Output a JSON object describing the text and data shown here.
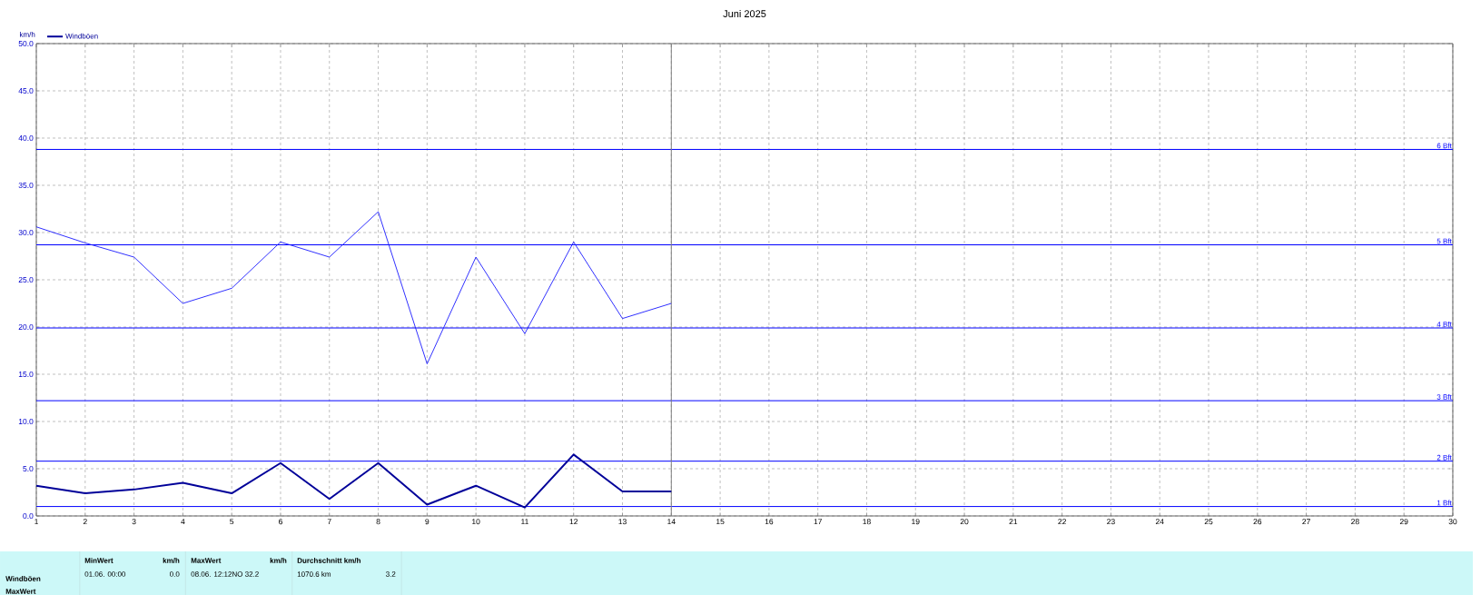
{
  "chart_data": {
    "type": "line",
    "title": "Juni 2025",
    "ylabel": "km/h",
    "x": [
      1,
      2,
      3,
      4,
      5,
      6,
      7,
      8,
      9,
      10,
      11,
      12,
      13,
      14
    ],
    "series": [
      {
        "color": "#1a1aff",
        "values": [
          30.6,
          28.9,
          27.4,
          22.5,
          24.1,
          29.0,
          27.4,
          32.2,
          16.1,
          27.4,
          19.3,
          29.0,
          20.9,
          22.5
        ]
      },
      {
        "name": "Windböen",
        "color": "#000099",
        "values": [
          3.2,
          2.4,
          2.8,
          3.5,
          2.4,
          5.6,
          1.8,
          5.6,
          1.2,
          3.2,
          0.9,
          6.5,
          2.6,
          2.6
        ]
      }
    ],
    "xlim": [
      1,
      30
    ],
    "xticks": [
      1,
      2,
      3,
      4,
      5,
      6,
      7,
      8,
      9,
      10,
      11,
      12,
      13,
      14,
      15,
      16,
      17,
      18,
      19,
      20,
      21,
      22,
      23,
      24,
      25,
      26,
      27,
      28,
      29,
      30
    ],
    "ylim": [
      0,
      50
    ],
    "yticks": [
      {
        "value": 0,
        "label": "0.0"
      },
      {
        "value": 5,
        "label": "5.0"
      },
      {
        "value": 10,
        "label": "10.0"
      },
      {
        "value": 15,
        "label": "15.0"
      },
      {
        "value": 20,
        "label": "20.0"
      },
      {
        "value": 25,
        "label": "25.0"
      },
      {
        "value": 30,
        "label": "30.0"
      },
      {
        "value": 35,
        "label": "35.0"
      },
      {
        "value": 40,
        "label": "40.0"
      },
      {
        "value": 45,
        "label": "45.0"
      },
      {
        "value": 50,
        "label": "50.0"
      }
    ],
    "ref_lines": [
      {
        "axis": "y",
        "value": 1.0,
        "label": "1 Bft",
        "color": "#0000ff"
      },
      {
        "axis": "y",
        "value": 5.8,
        "label": "2 Bft",
        "color": "#0000ff"
      },
      {
        "axis": "y",
        "value": 12.2,
        "label": "3 Bft",
        "color": "#0000ff"
      },
      {
        "axis": "y",
        "value": 19.9,
        "label": "4 Bft",
        "color": "#0000ff"
      },
      {
        "axis": "y",
        "value": 28.7,
        "label": "5 Bft",
        "color": "#0000ff"
      },
      {
        "axis": "y",
        "value": 38.8,
        "label": "6 Bft",
        "color": "#0000ff"
      },
      {
        "axis": "x",
        "value": 14,
        "color": "#808080"
      }
    ],
    "annotations": [
      "Windböen",
      "MaxWert",
      "MinWert",
      "km/h",
      "01.06.  00:00",
      "0.0",
      "MaxWert",
      "km/h",
      "08.06.  12:12NO 32.2",
      "Durchschnitt km/h",
      "1070.6 km",
      "3.2"
    ],
    "grid": true,
    "legend": "top left",
    "marker": "none",
    "line_style": "solid"
  }
}
